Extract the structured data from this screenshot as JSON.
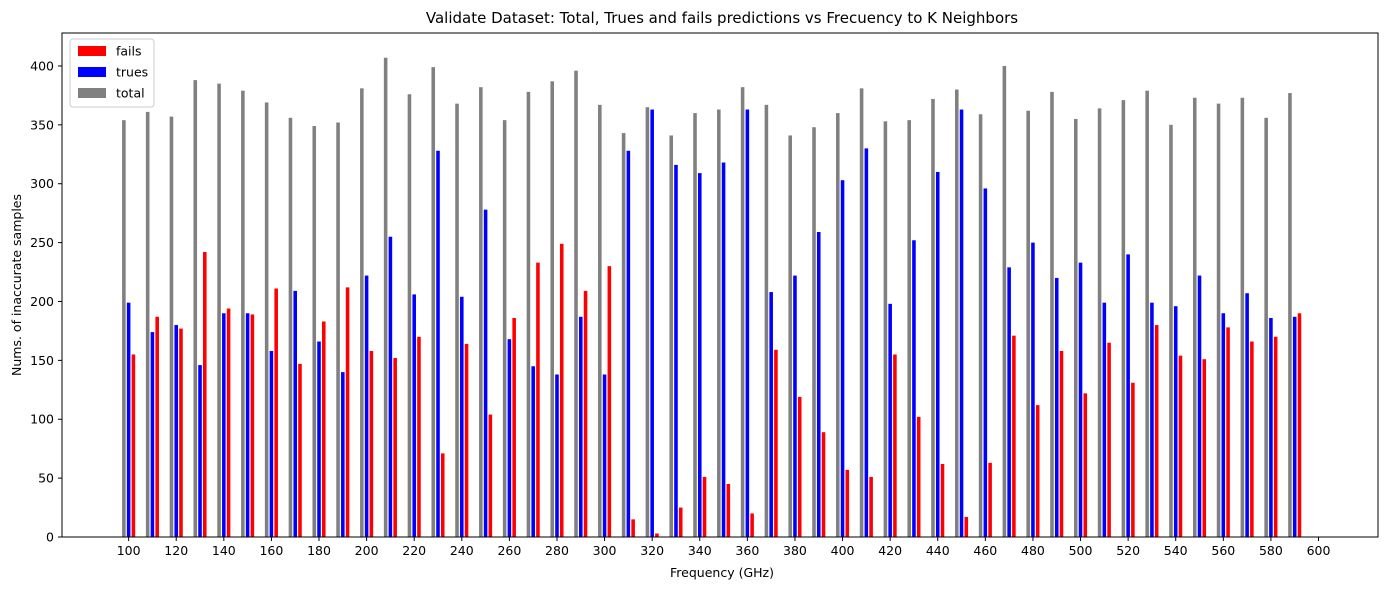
{
  "chart_data": {
    "type": "bar",
    "title": "Validate Dataset: Total, Trues and fails predictions vs Frecuency to K Neighbors",
    "xlabel": "Frequency (GHz)",
    "ylabel": "Nums. of inaccurate samples",
    "xlim": [
      72,
      625
    ],
    "ylim": [
      0,
      428
    ],
    "xticks": [
      100,
      120,
      140,
      160,
      180,
      200,
      220,
      240,
      260,
      280,
      300,
      320,
      340,
      360,
      380,
      400,
      420,
      440,
      460,
      480,
      500,
      520,
      540,
      560,
      580,
      600
    ],
    "yticks": [
      0,
      50,
      100,
      150,
      200,
      250,
      300,
      350,
      400
    ],
    "x": [
      100,
      110,
      120,
      130,
      140,
      150,
      160,
      170,
      180,
      190,
      200,
      210,
      220,
      230,
      240,
      250,
      260,
      270,
      280,
      290,
      300,
      310,
      320,
      330,
      340,
      350,
      360,
      370,
      380,
      390,
      400,
      410,
      420,
      430,
      440,
      450,
      460,
      470,
      480,
      490,
      500,
      510,
      520,
      530,
      540,
      550,
      560,
      570,
      580,
      590
    ],
    "series": [
      {
        "name": "fails",
        "color": "#ff0000",
        "offset": 2,
        "values": [
          155,
          187,
          177,
          242,
          194,
          189,
          211,
          147,
          183,
          212,
          158,
          152,
          170,
          71,
          164,
          104,
          186,
          233,
          249,
          209,
          230,
          15,
          3,
          25,
          51,
          45,
          20,
          159,
          119,
          89,
          57,
          51,
          155,
          102,
          62,
          17,
          63,
          171,
          112,
          158,
          122,
          165,
          131,
          180,
          154,
          151,
          178,
          166,
          170,
          190
        ]
      },
      {
        "name": "trues",
        "color": "#0000ff",
        "offset": 0,
        "values": [
          199,
          174,
          180,
          146,
          190,
          190,
          158,
          209,
          166,
          140,
          222,
          255,
          206,
          328,
          204,
          278,
          168,
          145,
          138,
          187,
          138,
          328,
          363,
          316,
          309,
          318,
          363,
          208,
          222,
          259,
          303,
          330,
          198,
          252,
          310,
          363,
          296,
          229,
          250,
          220,
          233,
          199,
          240,
          199,
          196,
          222,
          190,
          207,
          186,
          187
        ]
      },
      {
        "name": "total",
        "color": "#808080",
        "offset": -2,
        "values": [
          354,
          361,
          357,
          388,
          385,
          379,
          369,
          356,
          349,
          352,
          381,
          407,
          376,
          399,
          368,
          382,
          354,
          378,
          387,
          396,
          367,
          343,
          365,
          341,
          360,
          363,
          382,
          367,
          341,
          348,
          360,
          381,
          353,
          354,
          372,
          380,
          359,
          400,
          362,
          378,
          355,
          364,
          371,
          379,
          350,
          373,
          368,
          373,
          356,
          377
        ]
      }
    ],
    "legend": {
      "position": "top-left",
      "entries": [
        "fails",
        "trues",
        "total"
      ]
    },
    "grid": false
  }
}
